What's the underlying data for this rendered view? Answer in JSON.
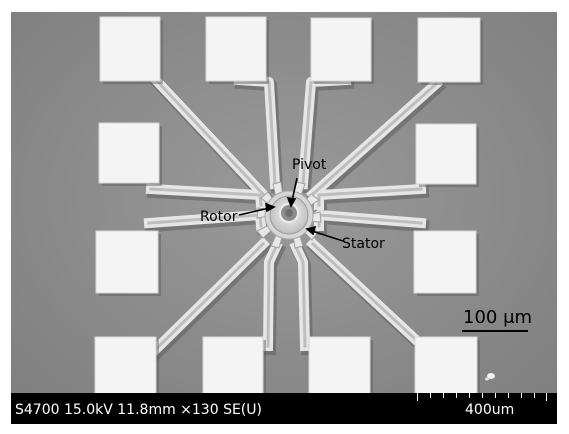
{
  "labels": {
    "pivot": "Pivot",
    "rotor": "Rotor",
    "stator": "Stator"
  },
  "scale_bar": {
    "label": "100 μm"
  },
  "databar": {
    "info": "S4700 15.0kV 11.8mm ×130 SE(U)",
    "scale": "400um"
  },
  "colors": {
    "background": "#8f8f8f",
    "pad": "#f2f2f2",
    "databar": "#000000",
    "databar_text": "#ffffff"
  }
}
